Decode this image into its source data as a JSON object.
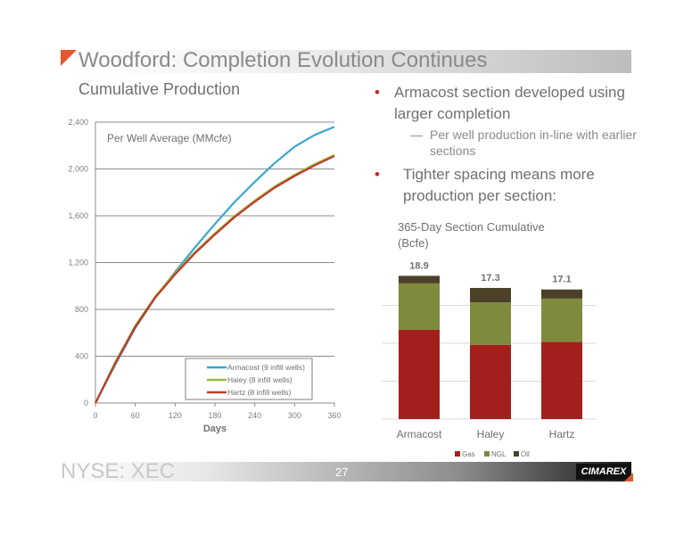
{
  "slide": {
    "title": "Woodford: Completion Evolution Continues",
    "subtitle": "Cumulative Production",
    "bullet1": "Armacost section developed using larger completion",
    "bullet1_sub": "Per well production in-line with earlier sections",
    "bullet2": "Tighter spacing means more production per section:",
    "bullet_dot": "•",
    "sub_dash": "—",
    "footer_left": "NYSE: XEC",
    "page_number": "27",
    "logo_text": "CIMAREX"
  },
  "colors": {
    "armacost": "#3aa6d0",
    "haley": "#9bbb3b",
    "hartz": "#c0392b",
    "gas": "#a31f1c",
    "ngl": "#7f8a3c",
    "oil": "#4a4128"
  },
  "chart_data": [
    {
      "type": "line",
      "title": "Per Well Average (MMcfe)",
      "xlabel": "Days",
      "ylabel": "",
      "xlim": [
        0,
        360
      ],
      "ylim": [
        0,
        2400
      ],
      "xticks": [
        0,
        60,
        120,
        180,
        240,
        300,
        360
      ],
      "yticks": [
        0,
        400,
        800,
        1200,
        1600,
        2000,
        2400
      ],
      "ytick_labels": [
        "0",
        "400",
        "800",
        "1,200",
        "1,600",
        "2,000",
        "2,400"
      ],
      "x": [
        0,
        30,
        60,
        90,
        120,
        150,
        180,
        210,
        240,
        270,
        300,
        330,
        360
      ],
      "series": [
        {
          "name": "Armacost (9 infill wells)",
          "values": [
            0,
            330,
            640,
            900,
            1120,
            1330,
            1530,
            1720,
            1890,
            2050,
            2190,
            2290,
            2360
          ]
        },
        {
          "name": "Haley (8 infill wells)",
          "values": [
            0,
            350,
            660,
            910,
            1110,
            1290,
            1450,
            1600,
            1730,
            1850,
            1950,
            2040,
            2120
          ]
        },
        {
          "name": "Hartz (8 infill wells)",
          "values": [
            0,
            340,
            650,
            900,
            1100,
            1280,
            1440,
            1590,
            1720,
            1840,
            1940,
            2030,
            2110
          ]
        }
      ],
      "legend": "bottom-right",
      "grid": true
    },
    {
      "type": "bar",
      "stacked": true,
      "title": "365-Day Section Cumulative (Bcfe)",
      "categories": [
        "Armacost",
        "Haley",
        "Hartz"
      ],
      "totals": [
        "18.9",
        "17.3",
        "17.1"
      ],
      "ylim": [
        0,
        20
      ],
      "series": [
        {
          "name": "Gas",
          "values": [
            11.8,
            9.8,
            10.2
          ]
        },
        {
          "name": "NGL",
          "values": [
            6.1,
            5.6,
            5.7
          ]
        },
        {
          "name": "Oil",
          "values": [
            1.0,
            1.9,
            1.2
          ]
        }
      ],
      "legend": "bottom",
      "grid": true
    }
  ]
}
